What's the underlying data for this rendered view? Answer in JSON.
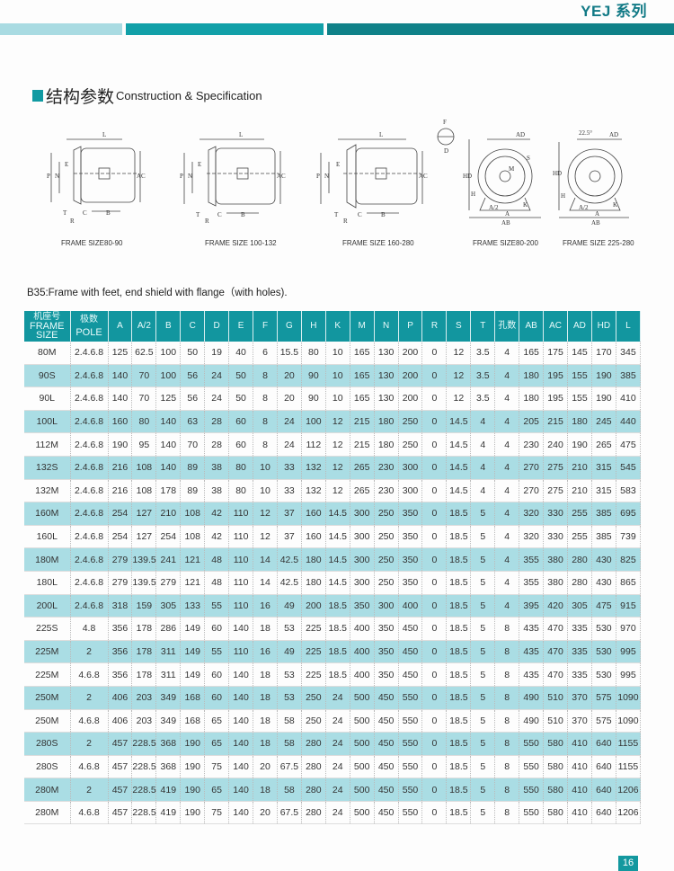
{
  "header": {
    "series": "YEJ 系列",
    "colors": {
      "light": "#a9dbe2",
      "mid": "#12a0a8",
      "dark": "#0f8188"
    }
  },
  "section": {
    "title_cn": "结构参数",
    "title_en": "Construction & Specification"
  },
  "diagrams": [
    {
      "caption": "FRAME SIZE80-90",
      "labels": [
        "L",
        "P",
        "N",
        "E",
        "AC",
        "T",
        "C",
        "B",
        "R"
      ]
    },
    {
      "caption": "FRAME SIZE 100-132",
      "labels": [
        "L",
        "P",
        "N",
        "E",
        "AC",
        "T",
        "C",
        "B",
        "R"
      ]
    },
    {
      "caption": "FRAME SIZE 160-280",
      "labels": [
        "L",
        "P",
        "N",
        "E",
        "AC",
        "T",
        "C",
        "B",
        "R"
      ]
    },
    {
      "caption": "FRAME SIZE80-200",
      "labels": [
        "F",
        "D",
        "AD",
        "HD",
        "H",
        "A/2",
        "A",
        "AB",
        "K",
        "M",
        "S"
      ]
    },
    {
      "caption": "FRAME SIZE 225-280",
      "labels": [
        "22.5°",
        "AD",
        "HD",
        "H",
        "A/2",
        "A",
        "AB",
        "K"
      ]
    }
  ],
  "description": "B35:Frame with feet, end shield with flange（with holes).",
  "table": {
    "headers": [
      [
        "机座号",
        "FRAME",
        "SIZE"
      ],
      [
        "极数",
        "POLE"
      ],
      [
        "A"
      ],
      [
        "A/2"
      ],
      [
        "B"
      ],
      [
        "C"
      ],
      [
        "D"
      ],
      [
        "E"
      ],
      [
        "F"
      ],
      [
        "G"
      ],
      [
        "H"
      ],
      [
        "K"
      ],
      [
        "M"
      ],
      [
        "N"
      ],
      [
        "P"
      ],
      [
        "R"
      ],
      [
        "S"
      ],
      [
        "T"
      ],
      [
        "孔数"
      ],
      [
        "AB"
      ],
      [
        "AC"
      ],
      [
        "AD"
      ],
      [
        "HD"
      ],
      [
        "L"
      ]
    ],
    "rows": [
      [
        "80M",
        "2.4.6.8",
        "125",
        "62.5",
        "100",
        "50",
        "19",
        "40",
        "6",
        "15.5",
        "80",
        "10",
        "165",
        "130",
        "200",
        "0",
        "12",
        "3.5",
        "4",
        "165",
        "175",
        "145",
        "170",
        "345"
      ],
      [
        "90S",
        "2.4.6.8",
        "140",
        "70",
        "100",
        "56",
        "24",
        "50",
        "8",
        "20",
        "90",
        "10",
        "165",
        "130",
        "200",
        "0",
        "12",
        "3.5",
        "4",
        "180",
        "195",
        "155",
        "190",
        "385"
      ],
      [
        "90L",
        "2.4.6.8",
        "140",
        "70",
        "125",
        "56",
        "24",
        "50",
        "8",
        "20",
        "90",
        "10",
        "165",
        "130",
        "200",
        "0",
        "12",
        "3.5",
        "4",
        "180",
        "195",
        "155",
        "190",
        "410"
      ],
      [
        "100L",
        "2.4.6.8",
        "160",
        "80",
        "140",
        "63",
        "28",
        "60",
        "8",
        "24",
        "100",
        "12",
        "215",
        "180",
        "250",
        "0",
        "14.5",
        "4",
        "4",
        "205",
        "215",
        "180",
        "245",
        "440"
      ],
      [
        "112M",
        "2.4.6.8",
        "190",
        "95",
        "140",
        "70",
        "28",
        "60",
        "8",
        "24",
        "112",
        "12",
        "215",
        "180",
        "250",
        "0",
        "14.5",
        "4",
        "4",
        "230",
        "240",
        "190",
        "265",
        "475"
      ],
      [
        "132S",
        "2.4.6.8",
        "216",
        "108",
        "140",
        "89",
        "38",
        "80",
        "10",
        "33",
        "132",
        "12",
        "265",
        "230",
        "300",
        "0",
        "14.5",
        "4",
        "4",
        "270",
        "275",
        "210",
        "315",
        "545"
      ],
      [
        "132M",
        "2.4.6.8",
        "216",
        "108",
        "178",
        "89",
        "38",
        "80",
        "10",
        "33",
        "132",
        "12",
        "265",
        "230",
        "300",
        "0",
        "14.5",
        "4",
        "4",
        "270",
        "275",
        "210",
        "315",
        "583"
      ],
      [
        "160M",
        "2.4.6.8",
        "254",
        "127",
        "210",
        "108",
        "42",
        "110",
        "12",
        "37",
        "160",
        "14.5",
        "300",
        "250",
        "350",
        "0",
        "18.5",
        "5",
        "4",
        "320",
        "330",
        "255",
        "385",
        "695"
      ],
      [
        "160L",
        "2.4.6.8",
        "254",
        "127",
        "254",
        "108",
        "42",
        "110",
        "12",
        "37",
        "160",
        "14.5",
        "300",
        "250",
        "350",
        "0",
        "18.5",
        "5",
        "4",
        "320",
        "330",
        "255",
        "385",
        "739"
      ],
      [
        "180M",
        "2.4.6.8",
        "279",
        "139.5",
        "241",
        "121",
        "48",
        "110",
        "14",
        "42.5",
        "180",
        "14.5",
        "300",
        "250",
        "350",
        "0",
        "18.5",
        "5",
        "4",
        "355",
        "380",
        "280",
        "430",
        "825"
      ],
      [
        "180L",
        "2.4.6.8",
        "279",
        "139.5",
        "279",
        "121",
        "48",
        "110",
        "14",
        "42.5",
        "180",
        "14.5",
        "300",
        "250",
        "350",
        "0",
        "18.5",
        "5",
        "4",
        "355",
        "380",
        "280",
        "430",
        "865"
      ],
      [
        "200L",
        "2.4.6.8",
        "318",
        "159",
        "305",
        "133",
        "55",
        "110",
        "16",
        "49",
        "200",
        "18.5",
        "350",
        "300",
        "400",
        "0",
        "18.5",
        "5",
        "4",
        "395",
        "420",
        "305",
        "475",
        "915"
      ],
      [
        "225S",
        "4.8",
        "356",
        "178",
        "286",
        "149",
        "60",
        "140",
        "18",
        "53",
        "225",
        "18.5",
        "400",
        "350",
        "450",
        "0",
        "18.5",
        "5",
        "8",
        "435",
        "470",
        "335",
        "530",
        "970"
      ],
      [
        "225M",
        "2",
        "356",
        "178",
        "311",
        "149",
        "55",
        "110",
        "16",
        "49",
        "225",
        "18.5",
        "400",
        "350",
        "450",
        "0",
        "18.5",
        "5",
        "8",
        "435",
        "470",
        "335",
        "530",
        "995"
      ],
      [
        "225M",
        "4.6.8",
        "356",
        "178",
        "311",
        "149",
        "60",
        "140",
        "18",
        "53",
        "225",
        "18.5",
        "400",
        "350",
        "450",
        "0",
        "18.5",
        "5",
        "8",
        "435",
        "470",
        "335",
        "530",
        "995"
      ],
      [
        "250M",
        "2",
        "406",
        "203",
        "349",
        "168",
        "60",
        "140",
        "18",
        "53",
        "250",
        "24",
        "500",
        "450",
        "550",
        "0",
        "18.5",
        "5",
        "8",
        "490",
        "510",
        "370",
        "575",
        "1090"
      ],
      [
        "250M",
        "4.6.8",
        "406",
        "203",
        "349",
        "168",
        "65",
        "140",
        "18",
        "58",
        "250",
        "24",
        "500",
        "450",
        "550",
        "0",
        "18.5",
        "5",
        "8",
        "490",
        "510",
        "370",
        "575",
        "1090"
      ],
      [
        "280S",
        "2",
        "457",
        "228.5",
        "368",
        "190",
        "65",
        "140",
        "18",
        "58",
        "280",
        "24",
        "500",
        "450",
        "550",
        "0",
        "18.5",
        "5",
        "8",
        "550",
        "580",
        "410",
        "640",
        "1155"
      ],
      [
        "280S",
        "4.6.8",
        "457",
        "228.5",
        "368",
        "190",
        "75",
        "140",
        "20",
        "67.5",
        "280",
        "24",
        "500",
        "450",
        "550",
        "0",
        "18.5",
        "5",
        "8",
        "550",
        "580",
        "410",
        "640",
        "1155"
      ],
      [
        "280M",
        "2",
        "457",
        "228.5",
        "419",
        "190",
        "65",
        "140",
        "18",
        "58",
        "280",
        "24",
        "500",
        "450",
        "550",
        "0",
        "18.5",
        "5",
        "8",
        "550",
        "580",
        "410",
        "640",
        "1206"
      ],
      [
        "280M",
        "4.6.8",
        "457",
        "228.5",
        "419",
        "190",
        "75",
        "140",
        "20",
        "67.5",
        "280",
        "24",
        "500",
        "450",
        "550",
        "0",
        "18.5",
        "5",
        "8",
        "550",
        "580",
        "410",
        "640",
        "1206"
      ]
    ]
  },
  "page_number": "16"
}
